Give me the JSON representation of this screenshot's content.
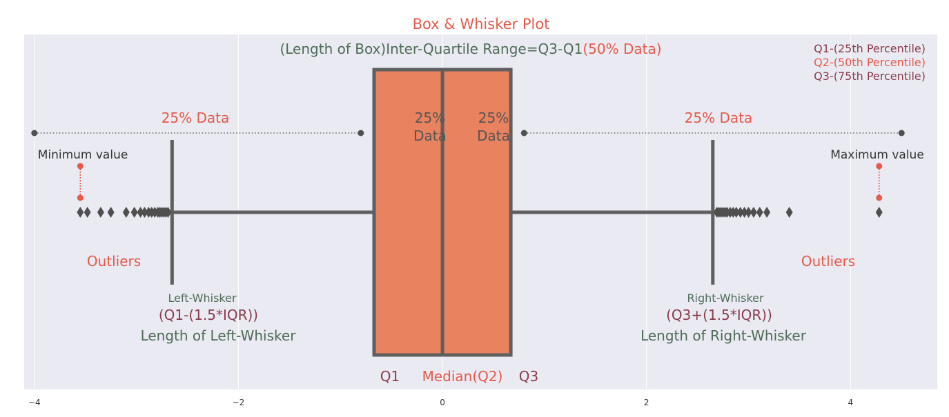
{
  "colors": {
    "plot_bg": "#e9eaf2",
    "grid": "#ffffff",
    "box_fill": "#e8825f",
    "box_edge": "#5f5f5f",
    "title_red": "#e8594a",
    "annot_green": "#4e6b57",
    "annot_maroon": "#8a3b4b",
    "tick_text": "#333333"
  },
  "chart_data": {
    "type": "box",
    "title": "Box & Whisker Plot",
    "subtitle_part1": "(Length of Box)Inter-Quartile Range=Q3-Q1",
    "subtitle_part2": "(50% Data)",
    "xlim": [
      -4.1,
      4.85
    ],
    "xticks": [
      -4,
      -2,
      0,
      2,
      4
    ],
    "xtick_labels": [
      "−4",
      "−2",
      "0",
      "2",
      "4"
    ],
    "grid": true,
    "box": {
      "q1": -0.67,
      "median": 0.0,
      "q3": 0.67,
      "lower_whisker": -2.65,
      "upper_whisker": 2.65
    },
    "outliers_left": [
      -3.55,
      -3.48,
      -3.35,
      -3.25,
      -3.1,
      -3.02,
      -2.96,
      -2.92,
      -2.88,
      -2.85,
      -2.82,
      -2.79,
      -2.77,
      -2.75,
      -2.73,
      -2.71,
      -2.69
    ],
    "outliers_right": [
      2.69,
      2.71,
      2.73,
      2.75,
      2.77,
      2.79,
      2.82,
      2.85,
      2.88,
      2.92,
      2.96,
      3.0,
      3.05,
      3.11,
      3.18,
      3.4,
      4.28
    ],
    "span_left": [
      -4.0,
      -0.8
    ],
    "span_right": [
      0.8,
      4.5
    ],
    "annotations": {
      "quartile_legend": [
        "Q1-(25th Percentile)",
        "Q2-(50th Percentile)",
        "Q3-(75th Percentile)"
      ],
      "pct_left": "25% Data",
      "pct_right": "25% Data",
      "box_left_line1": "25%",
      "box_left_line2": "Data",
      "box_right_line1": "25%",
      "box_right_line2": "Data",
      "min_value": "Minimum value",
      "max_value": "Maximum value",
      "outliers_left": "Outliers",
      "outliers_right": "Outliers",
      "left_whisker": "Left-Whisker",
      "left_formula": "(Q1-(1.5*IQR))",
      "left_length": "Length of Left-Whisker",
      "right_whisker": "Right-Whisker",
      "right_formula": "(Q3+(1.5*IQR))",
      "right_length": "Length of Right-Whisker",
      "q1": "Q1",
      "median": "Median(Q2)",
      "q3": "Q3"
    }
  }
}
